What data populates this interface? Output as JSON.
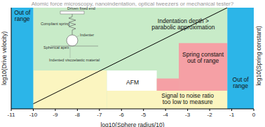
{
  "chart_data": {
    "type": "region_map",
    "title": "Atomic force microscopy, nanoindentation, optical tweezers or mechanical tester?",
    "x_label": "log10(Sphere radius/10)",
    "y_label": "log10(Drive velocity)",
    "y2_label": "log10(Spring constant)",
    "xlim": [
      -11,
      0
    ],
    "xticks": [
      -11,
      -10,
      -9,
      -8,
      -7,
      -6,
      -5,
      -4,
      -3,
      -2,
      -1,
      0
    ],
    "ylim": [
      0,
      10
    ],
    "tick_labels": "x",
    "regions": [
      {
        "color": "#c8ebc8",
        "x": [
          -10,
          -1.2
        ],
        "y": [
          0,
          10
        ]
      },
      {
        "color": "#fbf5c0",
        "x": [
          -10,
          -6.66
        ],
        "y": [
          0,
          3.8
        ]
      },
      {
        "color": "#fbf5c0",
        "x": [
          -6.66,
          -1.2
        ],
        "y": [
          0,
          1.8
        ]
      },
      {
        "color": "#ffffff",
        "x": [
          -6.66,
          -4.4
        ],
        "y": [
          1.8,
          3.8
        ]
      },
      {
        "color": "#f5a0a5",
        "x": [
          -4.4,
          -3.4
        ],
        "y": [
          1.8,
          3
        ]
      },
      {
        "color": "#f5a0a5",
        "x": [
          -3.4,
          -1.2
        ],
        "y": [
          1.8,
          6.5
        ]
      },
      {
        "color": "#2cb5e8",
        "x": [
          -11,
          -10
        ],
        "y": [
          0,
          10
        ]
      },
      {
        "color": "#2cb5e8",
        "x": [
          -1.2,
          0
        ],
        "y": [
          0,
          10
        ]
      }
    ],
    "line": {
      "x": [
        -10,
        -1.2
      ],
      "y": [
        0.5,
        10
      ],
      "color": "#000000"
    },
    "annotations": [
      {
        "lines": [
          "Out of",
          "range"
        ],
        "x": -10.5,
        "y": 9.2
      },
      {
        "lines": [
          "Out of",
          "range"
        ],
        "x": -0.6,
        "y": 2.6
      },
      {
        "lines": [
          "Indentation depth >",
          "parabolic approximation"
        ],
        "x": -3.2,
        "y": 8.4
      },
      {
        "lines": [
          "Spring constant",
          "out of range"
        ],
        "x": -2.3,
        "y": 5.1
      },
      {
        "lines": [
          "AFM"
        ],
        "x": -5.5,
        "y": 2.6
      },
      {
        "lines": [
          "Signal to noise ratio",
          "too low to measure"
        ],
        "x": -3.0,
        "y": 1.0
      }
    ],
    "inset": {
      "fixed_end": "Driven fixed end",
      "spring": "Compliant spring",
      "indenter": "Indenter",
      "apex": "Spherical apex",
      "material": "Indented viscoelastic material"
    }
  }
}
